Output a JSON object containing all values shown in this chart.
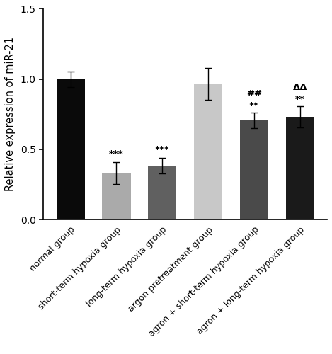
{
  "categories": [
    "normal group",
    "short-term hypoxia group",
    "long-term hypoxia group",
    "argon pretreatment group",
    "agron + short-term hypoxia group",
    "agron + long-term hypoxia group"
  ],
  "values": [
    1.0,
    0.33,
    0.385,
    0.965,
    0.705,
    0.73
  ],
  "errors": [
    0.055,
    0.078,
    0.055,
    0.115,
    0.055,
    0.075
  ],
  "bar_colors": [
    "#0a0a0a",
    "#aaaaaa",
    "#606060",
    "#c8c8c8",
    "#4a4a4a",
    "#1a1a1a"
  ],
  "ylabel": "Relative expression of miR-21",
  "ylim": [
    0.0,
    1.5
  ],
  "yticks": [
    0.0,
    0.5,
    1.0,
    1.5
  ],
  "ann_bar1": "***",
  "ann_bar2": "***",
  "ann_bar4_low": "**",
  "ann_bar4_high": "##",
  "ann_bar5_low": "**",
  "ann_bar5_high": "ΔΔ"
}
